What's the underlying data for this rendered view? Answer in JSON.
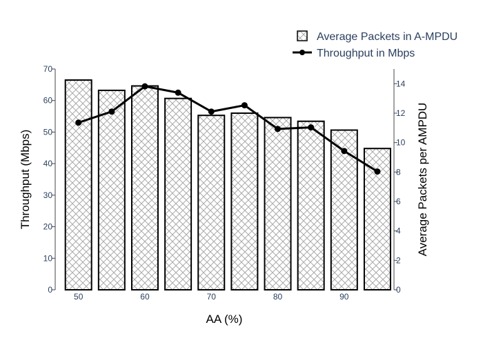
{
  "chart_data": {
    "type": "bar+line",
    "x": [
      50,
      55,
      60,
      65,
      70,
      75,
      80,
      85,
      90,
      95
    ],
    "series": [
      {
        "name": "Average Packets in A-MPDU",
        "type": "bar",
        "axis": "y2",
        "values": [
          14.25,
          13.55,
          13.85,
          13.0,
          11.85,
          12.0,
          11.7,
          11.45,
          10.85,
          9.6
        ]
      },
      {
        "name": "Throughput in Mbps",
        "type": "line",
        "axis": "y1",
        "values": [
          53.0,
          56.5,
          64.5,
          62.5,
          56.5,
          58.5,
          51.0,
          51.5,
          44.0,
          37.5
        ]
      }
    ],
    "xlabel": "AA (%)",
    "ylabel": "Throughput (Mbps)",
    "y2label": "Average Packets per AMPDU",
    "xticks": [
      50,
      60,
      70,
      80,
      90
    ],
    "yticks": [
      0,
      10,
      20,
      30,
      40,
      50,
      60,
      70
    ],
    "y2ticks": [
      0,
      2,
      4,
      6,
      8,
      10,
      12,
      14
    ],
    "ylim": [
      0,
      70
    ],
    "y2lim": [
      0,
      15
    ],
    "legend_position": "top-right",
    "colors": {
      "bar_fill": "#ffffff",
      "bar_hatch": "#aaaaaa",
      "bar_stroke": "#000000",
      "line": "#000000",
      "tick_text": "#2a3f5f",
      "axis_title": "#000000"
    }
  }
}
